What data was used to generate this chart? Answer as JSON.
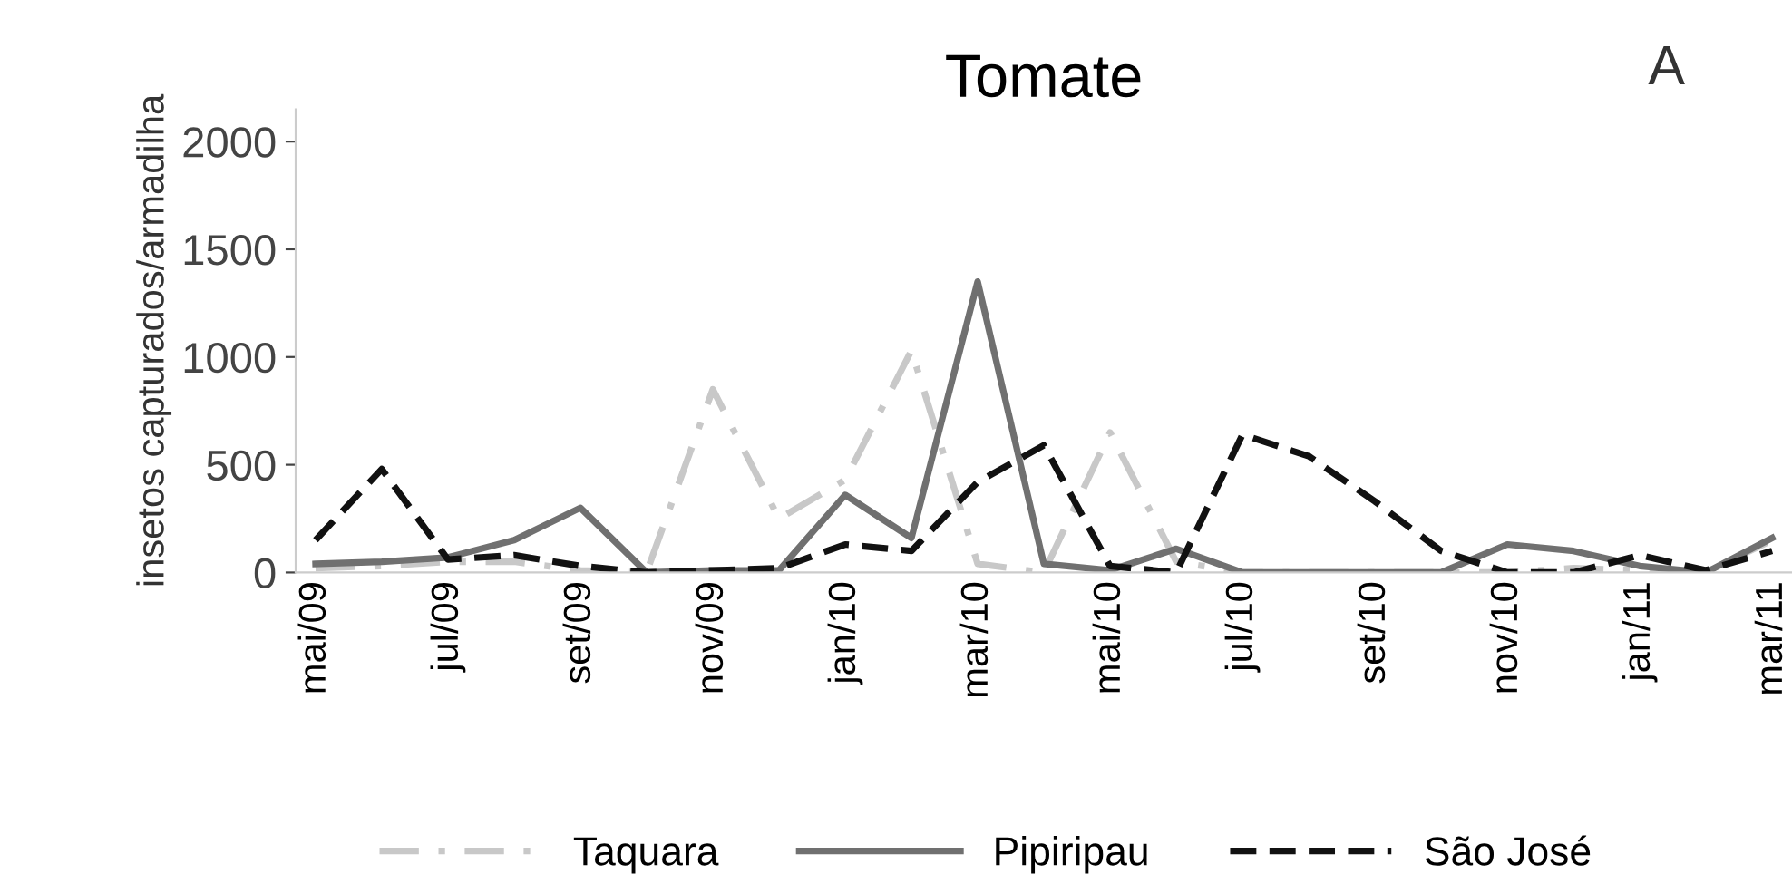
{
  "chart_data": {
    "type": "line",
    "title": "Tomate",
    "ylabel": "insetos capturados/armadilha",
    "annotations": [
      "A"
    ],
    "categories": [
      "mai/09",
      null,
      "jul/09",
      null,
      "set/09",
      null,
      "nov/09",
      null,
      "jan/10",
      null,
      "mar/10",
      null,
      "mai/10",
      null,
      "jul/10",
      null,
      "set/10",
      null,
      "nov/10",
      null,
      "jan/11",
      null,
      "mar/11"
    ],
    "series": [
      {
        "name": "Taquara",
        "color": "#c8c8c8",
        "line_style": "dashdot",
        "values": [
          20,
          30,
          50,
          50,
          10,
          0,
          850,
          250,
          430,
          1030,
          40,
          0,
          650,
          50,
          0,
          0,
          0,
          0,
          0,
          20,
          10,
          0,
          150
        ]
      },
      {
        "name": "Pipiripau",
        "color": "#707070",
        "line_style": "solid",
        "values": [
          40,
          50,
          70,
          150,
          300,
          0,
          10,
          10,
          360,
          160,
          1350,
          40,
          10,
          110,
          0,
          0,
          0,
          0,
          130,
          100,
          30,
          0,
          160
        ]
      },
      {
        "name": "São José",
        "color": "#111111",
        "line_style": "dashed",
        "values": [
          150,
          480,
          60,
          80,
          30,
          0,
          10,
          20,
          130,
          100,
          420,
          590,
          30,
          0,
          640,
          540,
          330,
          100,
          0,
          0,
          80,
          10,
          100
        ]
      }
    ],
    "ylim": [
      0,
      2150
    ],
    "yticks": [
      0,
      500,
      1000,
      1500,
      2000
    ],
    "grid": false,
    "legend": "bottom"
  }
}
